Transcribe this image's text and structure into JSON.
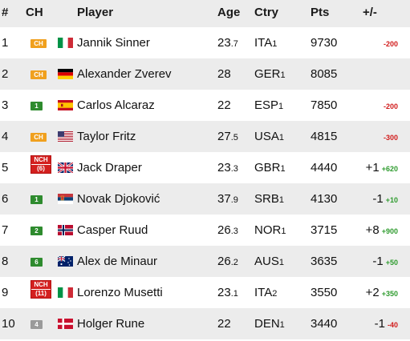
{
  "header": {
    "rank": "#",
    "ch": "CH",
    "player": "Player",
    "age": "Age",
    "ctry": "Ctry",
    "pts": "Pts",
    "diff": "+/-"
  },
  "colors": {
    "ch_badge": "#f0a01e",
    "num_badge": "#2e8b2e",
    "num_badge_gray": "#9a9a9a",
    "nch_badge": "#d3201f",
    "positive": "#2e9b2e",
    "negative": "#d11b1b",
    "stripe": "#ececec"
  },
  "rows": [
    {
      "rank": "1",
      "ch": "CH",
      "flag": "italy-flag",
      "name": "Jannik Sinner",
      "age_int": "23",
      "age_dec": ".7",
      "ctry": "ITA",
      "ctry_num": "1",
      "pts": "9730",
      "move": "",
      "pts_diff": "-200"
    },
    {
      "rank": "2",
      "ch": "CH",
      "flag": "germany-flag",
      "name": "Alexander Zverev",
      "age_int": "28",
      "age_dec": "",
      "ctry": "GER",
      "ctry_num": "1",
      "pts": "8085",
      "move": "",
      "pts_diff": ""
    },
    {
      "rank": "3",
      "ch": "1",
      "flag": "spain-flag",
      "name": "Carlos Alcaraz",
      "age_int": "22",
      "age_dec": "",
      "ctry": "ESP",
      "ctry_num": "1",
      "pts": "7850",
      "move": "",
      "pts_diff": "-200"
    },
    {
      "rank": "4",
      "ch": "CH",
      "flag": "usa-flag",
      "name": "Taylor Fritz",
      "age_int": "27",
      "age_dec": ".5",
      "ctry": "USA",
      "ctry_num": "1",
      "pts": "4815",
      "move": "",
      "pts_diff": "-300"
    },
    {
      "rank": "5",
      "ch_nch_1": "NCH",
      "ch_nch_2": "(6)",
      "flag": "uk-flag",
      "name": "Jack Draper",
      "age_int": "23",
      "age_dec": ".3",
      "ctry": "GBR",
      "ctry_num": "1",
      "pts": "4440",
      "move": "+1",
      "pts_diff": "+620"
    },
    {
      "rank": "6",
      "ch": "1",
      "flag": "serbia-flag",
      "name": "Novak Djoković",
      "age_int": "37",
      "age_dec": ".9",
      "ctry": "SRB",
      "ctry_num": "1",
      "pts": "4130",
      "move": "-1",
      "pts_diff": "+10"
    },
    {
      "rank": "7",
      "ch": "2",
      "flag": "norway-flag",
      "name": "Casper Ruud",
      "age_int": "26",
      "age_dec": ".3",
      "ctry": "NOR",
      "ctry_num": "1",
      "pts": "3715",
      "move": "+8",
      "pts_diff": "+900"
    },
    {
      "rank": "8",
      "ch": "6",
      "flag": "australia-flag",
      "name": "Alex de Minaur",
      "age_int": "26",
      "age_dec": ".2",
      "ctry": "AUS",
      "ctry_num": "1",
      "pts": "3635",
      "move": "-1",
      "pts_diff": "+50"
    },
    {
      "rank": "9",
      "ch_nch_1": "NCH",
      "ch_nch_2": "(11)",
      "flag": "italy-flag",
      "name": "Lorenzo Musetti",
      "age_int": "23",
      "age_dec": ".1",
      "ctry": "ITA",
      "ctry_num": "2",
      "pts": "3550",
      "move": "+2",
      "pts_diff": "+350"
    },
    {
      "rank": "10",
      "ch": "4",
      "flag": "denmark-flag",
      "name": "Holger Rune",
      "age_int": "22",
      "age_dec": "",
      "ctry": "DEN",
      "ctry_num": "1",
      "pts": "3440",
      "move": "-1",
      "pts_diff": "-40"
    }
  ]
}
